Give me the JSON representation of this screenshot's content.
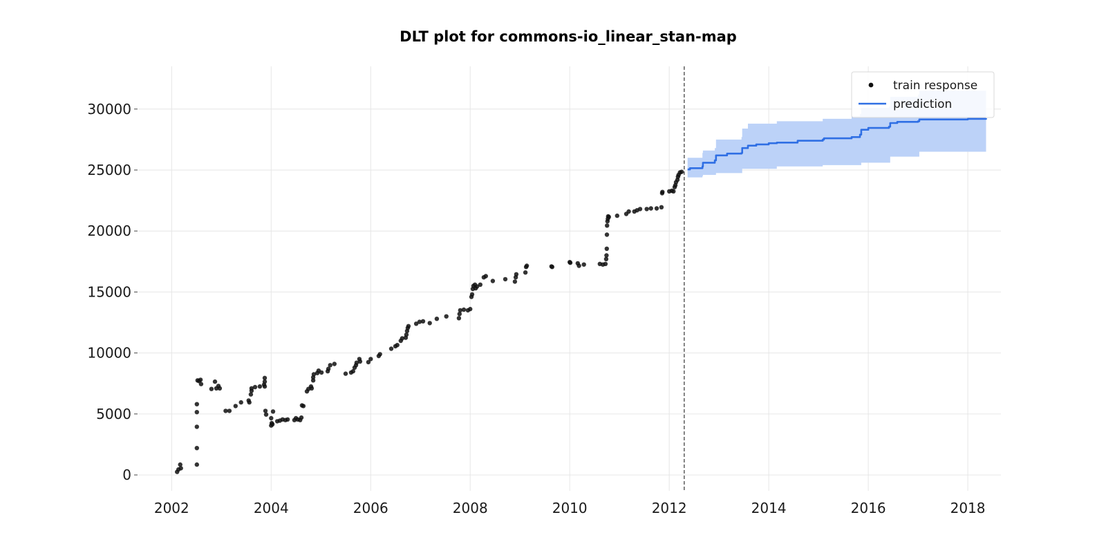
{
  "chart_data": {
    "type": "scatter",
    "title": "DLT plot for commons-io_linear_stan-map",
    "xlabel": "",
    "ylabel": "",
    "x_axis": "date",
    "xlim": [
      "2001-05-01",
      "2018-09-01"
    ],
    "ylim": [
      -1300,
      33500
    ],
    "x_ticks": [
      "2002",
      "2004",
      "2006",
      "2008",
      "2010",
      "2012",
      "2014",
      "2016",
      "2018"
    ],
    "y_ticks": [
      0,
      5000,
      10000,
      15000,
      20000,
      25000,
      30000
    ],
    "y_tick_labels": [
      "0",
      "5000",
      "10000",
      "15000",
      "20000",
      "25000",
      "30000"
    ],
    "grid": true,
    "legend": {
      "position": "top-right",
      "entries": [
        "train response",
        "prediction"
      ]
    },
    "colors": {
      "train_response": "#111111",
      "prediction": "#2f6fe4",
      "prediction_band": "#bcd2f8",
      "split_line": "#666666"
    },
    "split_date": "2012-04-20",
    "series": [
      {
        "name": "train response",
        "kind": "scatter",
        "points": [
          [
            "2002-02-10",
            250
          ],
          [
            "2002-02-20",
            450
          ],
          [
            "2002-03-05",
            850
          ],
          [
            "2002-03-10",
            550
          ],
          [
            "2002-07-05",
            850
          ],
          [
            "2002-07-05",
            2200
          ],
          [
            "2002-07-05",
            3950
          ],
          [
            "2002-07-05",
            5150
          ],
          [
            "2002-07-05",
            5800
          ],
          [
            "2002-07-10",
            7750
          ],
          [
            "2002-07-20",
            7700
          ],
          [
            "2002-08-01",
            7800
          ],
          [
            "2002-08-05",
            7450
          ],
          [
            "2002-10-20",
            7050
          ],
          [
            "2002-11-15",
            7650
          ],
          [
            "2002-11-25",
            7100
          ],
          [
            "2002-12-10",
            7300
          ],
          [
            "2002-12-20",
            7100
          ],
          [
            "2003-02-01",
            5250
          ],
          [
            "2003-03-01",
            5250
          ],
          [
            "2003-04-15",
            5650
          ],
          [
            "2003-05-25",
            5950
          ],
          [
            "2003-07-20",
            6100
          ],
          [
            "2003-07-25",
            5950
          ],
          [
            "2003-08-05",
            6600
          ],
          [
            "2003-08-10",
            6900
          ],
          [
            "2003-08-10",
            7100
          ],
          [
            "2003-09-05",
            7200
          ],
          [
            "2003-10-10",
            7250
          ],
          [
            "2003-11-10",
            7400
          ],
          [
            "2003-11-15",
            7250
          ],
          [
            "2003-11-15",
            7650
          ],
          [
            "2003-11-15",
            7950
          ],
          [
            "2003-11-20",
            5250
          ],
          [
            "2003-11-25",
            4950
          ],
          [
            "2004-01-01",
            4650
          ],
          [
            "2004-01-01",
            4050
          ],
          [
            "2004-01-05",
            4250
          ],
          [
            "2004-01-10",
            4150
          ],
          [
            "2004-01-15",
            5200
          ],
          [
            "2004-02-15",
            4400
          ],
          [
            "2004-03-05",
            4450
          ],
          [
            "2004-03-25",
            4550
          ],
          [
            "2004-04-15",
            4500
          ],
          [
            "2004-05-01",
            4550
          ],
          [
            "2004-06-20",
            4500
          ],
          [
            "2004-07-01",
            4650
          ],
          [
            "2004-07-15",
            4550
          ],
          [
            "2004-08-01",
            4500
          ],
          [
            "2004-08-10",
            4700
          ],
          [
            "2004-08-15",
            5700
          ],
          [
            "2004-08-25",
            5650
          ],
          [
            "2004-09-20",
            6850
          ],
          [
            "2004-10-01",
            7050
          ],
          [
            "2004-10-20",
            7250
          ],
          [
            "2004-10-25",
            7100
          ],
          [
            "2004-11-05",
            7750
          ],
          [
            "2004-11-05",
            8000
          ],
          [
            "2004-11-10",
            8250
          ],
          [
            "2004-12-05",
            8350
          ],
          [
            "2004-12-15",
            8550
          ],
          [
            "2005-01-05",
            8400
          ],
          [
            "2005-02-20",
            8500
          ],
          [
            "2005-02-25",
            8700
          ],
          [
            "2005-03-10",
            9000
          ],
          [
            "2005-04-10",
            9100
          ],
          [
            "2005-07-01",
            8300
          ],
          [
            "2005-08-10",
            8400
          ],
          [
            "2005-08-25",
            8500
          ],
          [
            "2005-09-05",
            8800
          ],
          [
            "2005-09-15",
            9000
          ],
          [
            "2005-09-20",
            9200
          ],
          [
            "2005-10-10",
            9500
          ],
          [
            "2005-10-15",
            9300
          ],
          [
            "2005-12-15",
            9250
          ],
          [
            "2006-01-01",
            9500
          ],
          [
            "2006-03-01",
            9750
          ],
          [
            "2006-03-10",
            9900
          ],
          [
            "2006-06-01",
            10350
          ],
          [
            "2006-07-01",
            10550
          ],
          [
            "2006-07-15",
            10650
          ],
          [
            "2006-08-10",
            11000
          ],
          [
            "2006-08-20",
            11200
          ],
          [
            "2006-09-15",
            11250
          ],
          [
            "2006-09-20",
            11500
          ],
          [
            "2006-09-25",
            11800
          ],
          [
            "2006-09-30",
            12050
          ],
          [
            "2006-10-05",
            12200
          ],
          [
            "2006-12-01",
            12400
          ],
          [
            "2006-12-25",
            12550
          ],
          [
            "2007-01-20",
            12600
          ],
          [
            "2007-03-10",
            12450
          ],
          [
            "2007-05-01",
            12800
          ],
          [
            "2007-07-10",
            13000
          ],
          [
            "2007-10-10",
            12850
          ],
          [
            "2007-10-15",
            13200
          ],
          [
            "2007-10-20",
            13500
          ],
          [
            "2007-11-15",
            13550
          ],
          [
            "2007-12-15",
            13500
          ],
          [
            "2008-01-01",
            13600
          ],
          [
            "2008-01-10",
            14600
          ],
          [
            "2008-01-15",
            14800
          ],
          [
            "2008-01-20",
            15250
          ],
          [
            "2008-01-25",
            15500
          ],
          [
            "2008-02-05",
            15600
          ],
          [
            "2008-02-10",
            15300
          ],
          [
            "2008-02-20",
            15450
          ],
          [
            "2008-03-15",
            15600
          ],
          [
            "2008-04-10",
            16200
          ],
          [
            "2008-04-25",
            16300
          ],
          [
            "2008-06-15",
            15900
          ],
          [
            "2008-09-15",
            16050
          ],
          [
            "2008-11-25",
            15850
          ],
          [
            "2008-12-01",
            16200
          ],
          [
            "2008-12-05",
            16450
          ],
          [
            "2009-02-10",
            16600
          ],
          [
            "2009-02-15",
            17050
          ],
          [
            "2009-02-20",
            17150
          ],
          [
            "2009-08-20",
            17100
          ],
          [
            "2009-08-25",
            17050
          ],
          [
            "2010-01-01",
            17450
          ],
          [
            "2010-01-05",
            17400
          ],
          [
            "2010-03-01",
            17350
          ],
          [
            "2010-03-10",
            17150
          ],
          [
            "2010-04-15",
            17250
          ],
          [
            "2010-08-10",
            17300
          ],
          [
            "2010-09-01",
            17250
          ],
          [
            "2010-09-20",
            17300
          ],
          [
            "2010-09-25",
            17700
          ],
          [
            "2010-09-28",
            18000
          ],
          [
            "2010-09-30",
            18550
          ],
          [
            "2010-10-01",
            19700
          ],
          [
            "2010-10-02",
            20450
          ],
          [
            "2010-10-05",
            20800
          ],
          [
            "2010-10-08",
            21000
          ],
          [
            "2010-10-10",
            21200
          ],
          [
            "2010-10-15",
            21150
          ],
          [
            "2010-12-15",
            21250
          ],
          [
            "2011-02-20",
            21400
          ],
          [
            "2011-03-10",
            21600
          ],
          [
            "2011-04-20",
            21600
          ],
          [
            "2011-05-10",
            21700
          ],
          [
            "2011-06-01",
            21800
          ],
          [
            "2011-07-20",
            21800
          ],
          [
            "2011-08-20",
            21850
          ],
          [
            "2011-10-01",
            21850
          ],
          [
            "2011-11-05",
            21950
          ],
          [
            "2011-11-10",
            23100
          ],
          [
            "2011-11-12",
            23200
          ],
          [
            "2012-01-01",
            23250
          ],
          [
            "2012-01-20",
            23300
          ],
          [
            "2012-02-01",
            23250
          ],
          [
            "2012-02-10",
            23600
          ],
          [
            "2012-02-15",
            23750
          ],
          [
            "2012-02-20",
            24000
          ],
          [
            "2012-03-01",
            24200
          ],
          [
            "2012-03-05",
            24450
          ],
          [
            "2012-03-10",
            24600
          ],
          [
            "2012-03-20",
            24800
          ],
          [
            "2012-04-01",
            24850
          ]
        ]
      },
      {
        "name": "prediction",
        "kind": "step-line-with-band",
        "points": [
          [
            "2012-05-15",
            25050
          ],
          [
            "2012-06-01",
            25150
          ],
          [
            "2012-09-01",
            25300
          ],
          [
            "2012-09-05",
            25600
          ],
          [
            "2012-12-01",
            25800
          ],
          [
            "2012-12-10",
            26200
          ],
          [
            "2013-03-01",
            26350
          ],
          [
            "2013-06-15",
            26400
          ],
          [
            "2013-06-20",
            26800
          ],
          [
            "2013-08-01",
            27000
          ],
          [
            "2013-10-01",
            27100
          ],
          [
            "2014-01-01",
            27200
          ],
          [
            "2014-03-01",
            27250
          ],
          [
            "2014-08-01",
            27400
          ],
          [
            "2015-02-01",
            27500
          ],
          [
            "2015-02-10",
            27600
          ],
          [
            "2015-09-01",
            27700
          ],
          [
            "2015-11-01",
            27900
          ],
          [
            "2015-11-10",
            28300
          ],
          [
            "2016-01-01",
            28450
          ],
          [
            "2016-06-01",
            28550
          ],
          [
            "2016-06-10",
            28850
          ],
          [
            "2016-08-01",
            28950
          ],
          [
            "2017-01-01",
            29000
          ],
          [
            "2017-01-10",
            29150
          ],
          [
            "2018-01-01",
            29200
          ],
          [
            "2018-05-15",
            29250
          ]
        ],
        "band_upper": [
          [
            "2012-05-15",
            26000
          ],
          [
            "2012-09-01",
            26400
          ],
          [
            "2012-09-05",
            26600
          ],
          [
            "2012-12-01",
            26800
          ],
          [
            "2012-12-10",
            27500
          ],
          [
            "2013-06-15",
            27700
          ],
          [
            "2013-06-20",
            28400
          ],
          [
            "2013-08-01",
            28800
          ],
          [
            "2014-03-01",
            29000
          ],
          [
            "2015-02-01",
            29200
          ],
          [
            "2015-09-01",
            29400
          ],
          [
            "2015-11-01",
            29600
          ],
          [
            "2015-11-10",
            30100
          ],
          [
            "2016-06-01",
            30200
          ],
          [
            "2016-06-10",
            31000
          ],
          [
            "2017-01-01",
            31200
          ],
          [
            "2017-01-10",
            31500
          ],
          [
            "2018-05-15",
            31600
          ]
        ],
        "band_lower": [
          [
            "2012-05-15",
            24400
          ],
          [
            "2012-09-01",
            24500
          ],
          [
            "2012-09-05",
            24600
          ],
          [
            "2012-12-10",
            24750
          ],
          [
            "2013-06-20",
            25100
          ],
          [
            "2014-03-01",
            25300
          ],
          [
            "2015-02-01",
            25400
          ],
          [
            "2015-11-10",
            25600
          ],
          [
            "2016-06-10",
            26100
          ],
          [
            "2017-01-10",
            26500
          ],
          [
            "2018-05-15",
            26650
          ]
        ]
      }
    ]
  }
}
